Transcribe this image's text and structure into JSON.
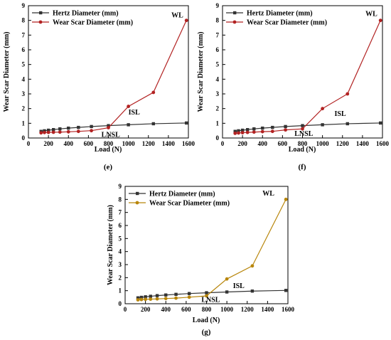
{
  "chart_data": [
    {
      "type": "line",
      "panel_label": "(e)",
      "xlabel": "Load (N)",
      "ylabel": "Wear Scar Diameter (mm)",
      "xlim": [
        0,
        1600
      ],
      "ylim": [
        0,
        9
      ],
      "xticks": [
        0,
        200,
        400,
        600,
        800,
        1000,
        1200,
        1400,
        1600
      ],
      "yticks": [
        0,
        1,
        2,
        3,
        4,
        5,
        6,
        7,
        8,
        9
      ],
      "grid": false,
      "legend": "top-left",
      "series": [
        {
          "name": "Hertz Diameter (mm)",
          "color": "#333333",
          "marker": "square",
          "x": [
            126,
            160,
            200,
            250,
            315,
            400,
            500,
            630,
            800,
            1000,
            1250,
            1580
          ],
          "y": [
            0.45,
            0.49,
            0.53,
            0.57,
            0.62,
            0.67,
            0.72,
            0.78,
            0.84,
            0.9,
            0.97,
            1.02
          ]
        },
        {
          "name": "Wear Scar Diameter (mm)",
          "color": "#b22222",
          "marker": "circle",
          "x": [
            126,
            160,
            200,
            250,
            315,
            400,
            500,
            630,
            800,
            1000,
            1250,
            1580
          ],
          "y": [
            0.35,
            0.37,
            0.38,
            0.39,
            0.4,
            0.42,
            0.45,
            0.5,
            0.7,
            2.15,
            3.1,
            8.0
          ]
        }
      ],
      "annotations": [
        {
          "text": "WL",
          "x": 1430,
          "y": 8.2
        },
        {
          "text": "ISL",
          "x": 1000,
          "y": 1.6
        },
        {
          "text": "LNSL",
          "x": 730,
          "y": 0.08
        }
      ]
    },
    {
      "type": "line",
      "panel_label": "(f)",
      "xlabel": "Load (N)",
      "ylabel": "Wear Scar Diameter (mm)",
      "xlim": [
        0,
        1600
      ],
      "ylim": [
        0,
        9
      ],
      "xticks": [
        0,
        200,
        400,
        600,
        800,
        1000,
        1200,
        1400,
        1600
      ],
      "yticks": [
        0,
        1,
        2,
        3,
        4,
        5,
        6,
        7,
        8,
        9
      ],
      "grid": false,
      "legend": "top-left",
      "series": [
        {
          "name": "Hertz Diameter (mm)",
          "color": "#333333",
          "marker": "square",
          "x": [
            126,
            160,
            200,
            250,
            315,
            400,
            500,
            630,
            800,
            1000,
            1250,
            1580
          ],
          "y": [
            0.45,
            0.49,
            0.53,
            0.57,
            0.62,
            0.67,
            0.72,
            0.78,
            0.84,
            0.9,
            0.97,
            1.02
          ]
        },
        {
          "name": "Wear Scar Diameter (mm)",
          "color": "#b22222",
          "marker": "circle",
          "x": [
            126,
            160,
            200,
            250,
            315,
            400,
            500,
            630,
            800,
            1000,
            1250,
            1580
          ],
          "y": [
            0.32,
            0.34,
            0.36,
            0.38,
            0.4,
            0.43,
            0.45,
            0.55,
            0.62,
            2.0,
            3.0,
            8.0
          ]
        }
      ],
      "annotations": [
        {
          "text": "WL",
          "x": 1430,
          "y": 8.3
        },
        {
          "text": "ISL",
          "x": 1120,
          "y": 1.5
        },
        {
          "text": "LNSL",
          "x": 720,
          "y": 0.15
        }
      ]
    },
    {
      "type": "line",
      "panel_label": "(g)",
      "xlabel": "Load (N)",
      "ylabel": "Wear Scar Diameter (mm)",
      "xlim": [
        0,
        1600
      ],
      "ylim": [
        0,
        9
      ],
      "xticks": [
        0,
        200,
        400,
        600,
        800,
        1000,
        1200,
        1400,
        1600
      ],
      "yticks": [
        0,
        1,
        2,
        3,
        4,
        5,
        6,
        7,
        8,
        9
      ],
      "grid": false,
      "legend": "top-left",
      "series": [
        {
          "name": "Hertz Diameter (mm)",
          "color": "#333333",
          "marker": "square",
          "x": [
            126,
            160,
            200,
            250,
            315,
            400,
            500,
            630,
            800,
            1000,
            1250,
            1580
          ],
          "y": [
            0.45,
            0.49,
            0.53,
            0.57,
            0.62,
            0.67,
            0.72,
            0.78,
            0.84,
            0.9,
            0.97,
            1.02
          ]
        },
        {
          "name": "Wear Scar Diameter (mm)",
          "color": "#b8860b",
          "marker": "circle",
          "x": [
            126,
            160,
            200,
            250,
            315,
            400,
            500,
            630,
            800,
            1000,
            1250,
            1580
          ],
          "y": [
            0.3,
            0.32,
            0.34,
            0.35,
            0.37,
            0.4,
            0.43,
            0.5,
            0.6,
            1.9,
            2.9,
            8.0
          ]
        }
      ],
      "annotations": [
        {
          "text": "WL",
          "x": 1350,
          "y": 8.3
        },
        {
          "text": "ISL",
          "x": 1060,
          "y": 1.2
        },
        {
          "text": "LNSL",
          "x": 750,
          "y": 0.15
        }
      ]
    }
  ]
}
